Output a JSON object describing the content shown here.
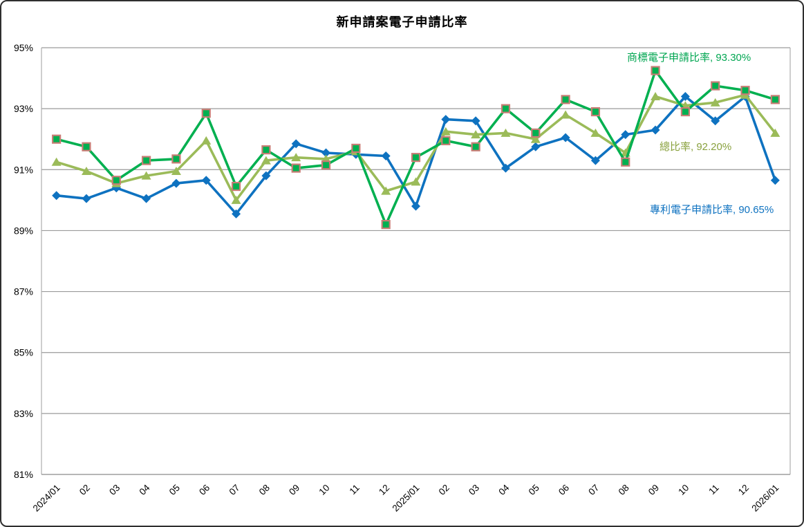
{
  "title": "新申請案電子申請比率",
  "chart_data": {
    "type": "line",
    "title": "新申請案電子申請比率",
    "xlabel": "",
    "ylabel": "",
    "ylim": [
      81,
      95
    ],
    "y_ticks": [
      95,
      93,
      91,
      89,
      87,
      85,
      83,
      81
    ],
    "y_tick_suffix": "%",
    "grid": true,
    "legend_position": "inline-callouts",
    "categories": [
      "2024/01",
      "02",
      "03",
      "04",
      "05",
      "06",
      "07",
      "08",
      "09",
      "10",
      "11",
      "12",
      "2025/01",
      "02",
      "03",
      "04",
      "05",
      "06",
      "07",
      "08",
      "09",
      "10",
      "11",
      "12",
      "2026/01"
    ],
    "series": [
      {
        "key": "patent",
        "name": "專利電子申請比率",
        "label": "專利電子申請比率, 90.65%",
        "latest_value": "90.65%",
        "color": "#0E72C0",
        "marker": "diamond",
        "values": [
          90.15,
          90.05,
          90.4,
          90.05,
          90.55,
          90.65,
          89.55,
          90.8,
          91.85,
          91.55,
          91.5,
          91.45,
          89.8,
          92.65,
          92.6,
          91.05,
          91.75,
          92.05,
          91.3,
          92.15,
          92.3,
          93.4,
          92.6,
          93.4,
          90.65
        ]
      },
      {
        "key": "total",
        "name": "總比率",
        "label": "總比率, 92.20%",
        "latest_value": "92.20%",
        "color": "#9BBB59",
        "marker": "triangle",
        "values": [
          91.25,
          90.95,
          90.55,
          90.8,
          90.95,
          91.95,
          90.0,
          91.3,
          91.4,
          91.35,
          91.6,
          90.3,
          90.6,
          92.25,
          92.15,
          92.2,
          92.0,
          92.8,
          92.2,
          91.55,
          93.4,
          93.1,
          93.2,
          93.45,
          92.2
        ]
      },
      {
        "key": "trademark",
        "name": "商標電子申請比率",
        "label": "商標電子申請比率, 93.30%",
        "latest_value": "93.30%",
        "color": "#00B050",
        "marker": "square",
        "marker_border": "#C87D75",
        "values": [
          92.0,
          91.75,
          90.65,
          91.3,
          91.35,
          92.85,
          90.45,
          91.65,
          91.05,
          91.15,
          91.7,
          89.2,
          91.4,
          91.95,
          91.75,
          93.0,
          92.2,
          93.3,
          92.9,
          91.25,
          94.25,
          92.9,
          93.75,
          93.6,
          93.3
        ]
      }
    ],
    "gridline_color": "#9A9A9A",
    "plot_border_color": "#ADADAD"
  }
}
